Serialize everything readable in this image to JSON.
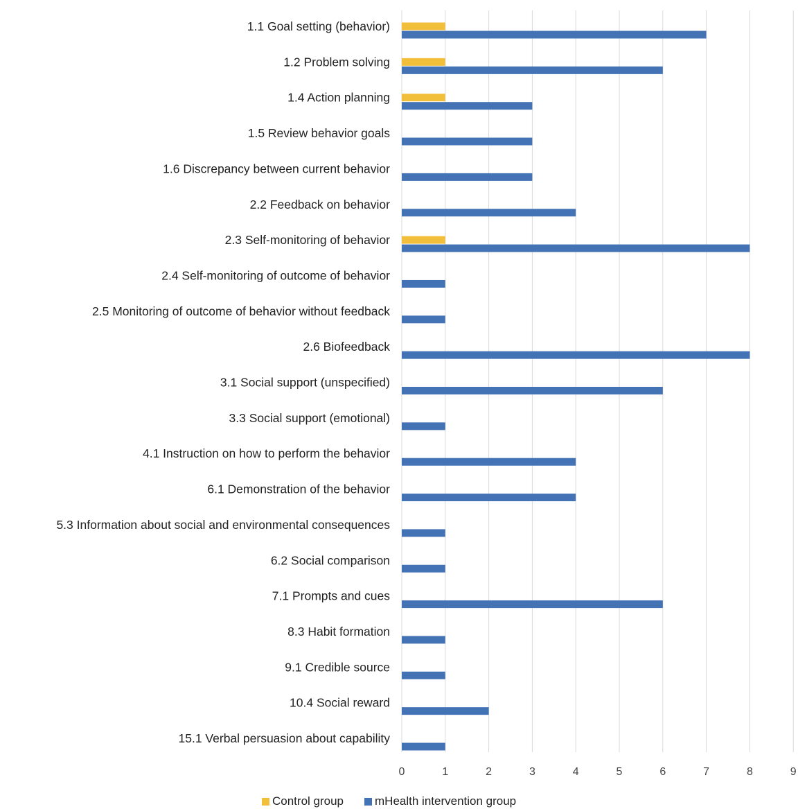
{
  "chart_data": {
    "type": "bar",
    "orientation": "horizontal",
    "categories": [
      "1.1 Goal setting (behavior)",
      "1.2 Problem solving",
      "1.4 Action planning",
      "1.5 Review behavior goals",
      "1.6 Discrepancy between current behavior",
      "2.2 Feedback on behavior",
      "2.3 Self-monitoring of behavior",
      "2.4 Self-monitoring of outcome of behavior",
      "2.5 Monitoring of outcome of behavior without feedback",
      "2.6 Biofeedback",
      "3.1 Social support (unspecified)",
      "3.3 Social support (emotional)",
      "4.1 Instruction on how to perform the behavior",
      "6.1 Demonstration of the behavior",
      "5.3 Information about social and environmental consequences",
      "6.2 Social comparison",
      "7.1 Prompts and cues",
      "8.3 Habit formation",
      "9.1 Credible source",
      "10.4 Social reward",
      "15.1 Verbal persuasion about capability"
    ],
    "series": [
      {
        "name": "Control group",
        "color": "#f2bf3a",
        "values": [
          1,
          1,
          1,
          0,
          0,
          0,
          1,
          0,
          0,
          0,
          0,
          0,
          0,
          0,
          0,
          0,
          0,
          0,
          0,
          0,
          0
        ]
      },
      {
        "name": "mHealth intervention group",
        "color": "#4372b5",
        "values": [
          7,
          6,
          3,
          3,
          3,
          4,
          8,
          1,
          1,
          8,
          6,
          1,
          4,
          4,
          1,
          1,
          6,
          1,
          1,
          2,
          1
        ]
      }
    ],
    "xlim": [
      0,
      9
    ],
    "xticks": [
      "0",
      "1",
      "2",
      "3",
      "4",
      "5",
      "6",
      "7",
      "8",
      "9"
    ],
    "grid": true,
    "legend_position": "bottom"
  }
}
